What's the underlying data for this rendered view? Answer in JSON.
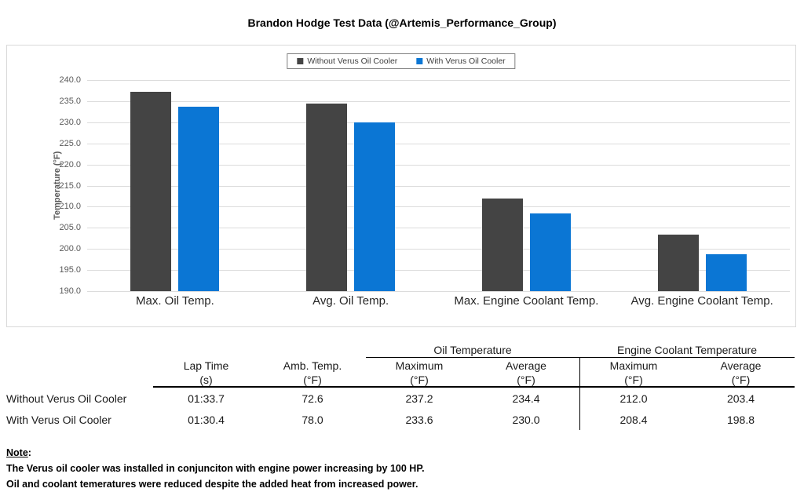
{
  "chart_data": {
    "type": "bar",
    "title": "Brandon Hodge Test Data (@Artemis_Performance_Group)",
    "categories": [
      "Max. Oil Temp.",
      "Avg. Oil Temp.",
      "Max. Engine Coolant Temp.",
      "Avg. Engine Coolant Temp."
    ],
    "series": [
      {
        "name": "Without Verus Oil Cooler",
        "color": "#444444",
        "values": [
          237.2,
          234.4,
          212.0,
          203.4
        ]
      },
      {
        "name": "With Verus Oil Cooler",
        "color": "#0b76d4",
        "values": [
          233.6,
          230.0,
          208.4,
          198.8
        ]
      }
    ],
    "xlabel": "",
    "ylabel": "Temperature (°F)",
    "ylim": [
      190,
      240
    ],
    "ytick_labels": [
      "240.0",
      "235.0",
      "230.0",
      "225.0",
      "220.0",
      "215.0",
      "210.0",
      "205.0",
      "200.0",
      "195.0",
      "190.0"
    ],
    "grid": "horizontal",
    "legend_position": "top-center"
  },
  "table": {
    "group_headers": [
      "Oil Temperature",
      "Engine Coolant Temperature"
    ],
    "columns": [
      {
        "label": "Lap Time",
        "unit": "(s)"
      },
      {
        "label": "Amb. Temp.",
        "unit": "(°F)"
      },
      {
        "label": "Maximum",
        "unit": "(°F)"
      },
      {
        "label": "Average",
        "unit": "(°F)"
      },
      {
        "label": "Maximum",
        "unit": "(°F)"
      },
      {
        "label": "Average",
        "unit": "(°F)"
      }
    ],
    "rows": [
      {
        "label": "Without Verus Oil Cooler",
        "values": [
          "01:33.7",
          "72.6",
          "237.2",
          "234.4",
          "212.0",
          "203.4"
        ]
      },
      {
        "label": "With Verus Oil Cooler",
        "values": [
          "01:30.4",
          "78.0",
          "233.6",
          "230.0",
          "208.4",
          "198.8"
        ]
      }
    ]
  },
  "note": {
    "heading": "Note",
    "colon": ":",
    "lines": [
      "The Verus oil cooler was installed in conjunciton with engine power increasing by 100 HP.",
      "Oil and coolant temeratures were reduced despite the added heat from increased power."
    ]
  }
}
